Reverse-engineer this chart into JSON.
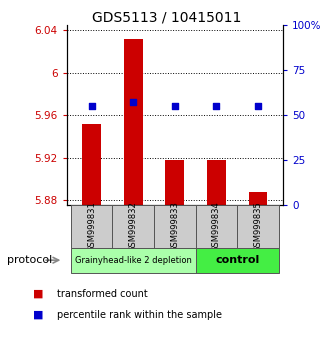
{
  "title": "GDS5113 / 10415011",
  "samples": [
    "GSM999831",
    "GSM999832",
    "GSM999833",
    "GSM999834",
    "GSM999835"
  ],
  "bar_values": [
    5.952,
    6.032,
    5.918,
    5.918,
    5.888
  ],
  "percentile_pct": [
    55,
    57,
    55,
    55,
    55
  ],
  "ylim_left": [
    5.875,
    6.045
  ],
  "ylim_right": [
    0,
    100
  ],
  "yticks_left": [
    5.88,
    5.92,
    5.96,
    6.0,
    6.04
  ],
  "yticks_right": [
    0,
    25,
    50,
    75,
    100
  ],
  "ytick_labels_left": [
    "5.88",
    "5.92",
    "5.96",
    "6",
    "6.04"
  ],
  "ytick_labels_right": [
    "0",
    "25",
    "50",
    "75",
    "100%"
  ],
  "bar_color": "#cc0000",
  "point_color": "#0000cc",
  "bar_bottom": 5.875,
  "group1_label": "Grainyhead-like 2 depletion",
  "group1_color": "#aaffaa",
  "group1_samples": [
    0,
    1,
    2
  ],
  "group2_label": "control",
  "group2_color": "#44ee44",
  "group2_samples": [
    3,
    4
  ],
  "protocol_label": "protocol",
  "legend_bar_label": "transformed count",
  "legend_dot_label": "percentile rank within the sample",
  "grid_style": "dotted",
  "sample_box_color": "#cccccc"
}
